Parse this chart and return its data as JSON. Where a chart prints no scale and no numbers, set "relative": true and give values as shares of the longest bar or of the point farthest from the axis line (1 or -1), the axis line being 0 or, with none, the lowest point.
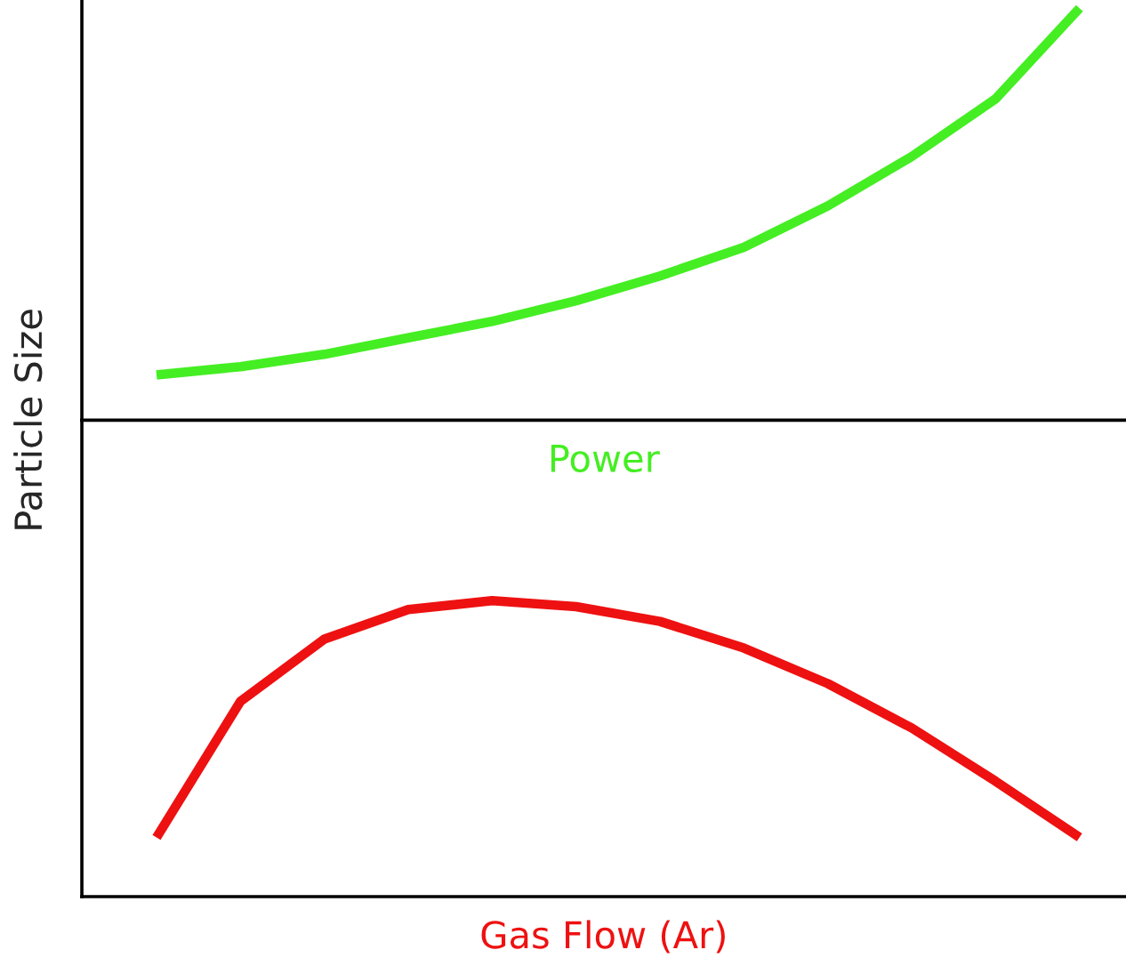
{
  "chart_data": [
    {
      "type": "line",
      "relative": true,
      "ylabel": "Particle Size",
      "xlabel": "Power",
      "grid": false,
      "legend": false,
      "marker": "none",
      "line_style": "solid",
      "categories": [
        null,
        null,
        null,
        null,
        null,
        null,
        null,
        null,
        null,
        null,
        null,
        null
      ],
      "series": [
        {
          "color": "#44ee22",
          "values": [
            0.11,
            0.13,
            0.16,
            0.2,
            0.24,
            0.29,
            0.35,
            0.42,
            0.52,
            0.64,
            0.78,
            1.0
          ]
        }
      ]
    },
    {
      "type": "line",
      "relative": true,
      "xlabel": "Gas Flow (Ar)",
      "grid": false,
      "legend": false,
      "marker": "none",
      "line_style": "solid",
      "categories": [
        null,
        null,
        null,
        null,
        null,
        null,
        null,
        null,
        null,
        null,
        null,
        null
      ],
      "series": [
        {
          "color": "#ee1111",
          "values": [
            0.2,
            0.66,
            0.87,
            0.97,
            1.0,
            0.98,
            0.93,
            0.84,
            0.72,
            0.57,
            0.39,
            0.2
          ]
        }
      ]
    }
  ]
}
